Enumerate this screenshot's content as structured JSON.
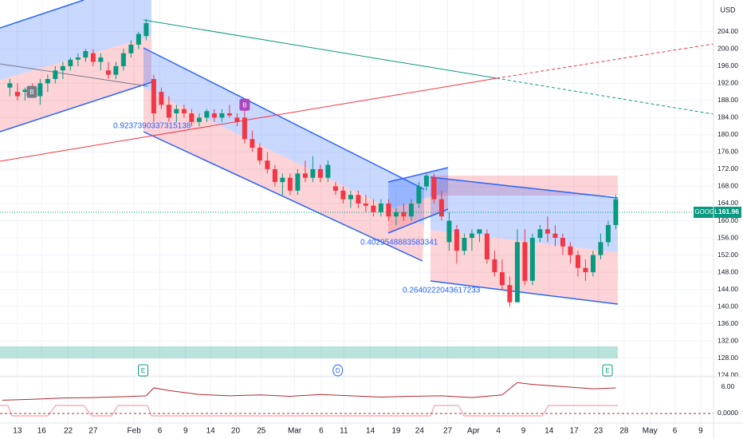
{
  "chart_data": [
    {
      "type": "candlestick",
      "currency": "USD",
      "x": [
        -1,
        0,
        1,
        2,
        3,
        4,
        5,
        6,
        7,
        8,
        9,
        10,
        11,
        12,
        13,
        14,
        15,
        16,
        17,
        18,
        19,
        20,
        21,
        22,
        23,
        24,
        25,
        26,
        27,
        28,
        29,
        30,
        31,
        32,
        33,
        34,
        35,
        36,
        37,
        38,
        39,
        40,
        41,
        42,
        43,
        44,
        45,
        46,
        47,
        48,
        49,
        50,
        51,
        52,
        53,
        54,
        55,
        56,
        57,
        58,
        59,
        60,
        61,
        62,
        63,
        64,
        65,
        66,
        67,
        68,
        69,
        70,
        71,
        72,
        73,
        74,
        75,
        76,
        77,
        78,
        79
      ],
      "ohlc": [
        [
          191,
          193,
          189,
          192
        ],
        [
          190,
          192,
          188,
          189
        ],
        [
          190,
          191,
          188,
          190.5
        ],
        [
          191,
          192,
          189,
          190
        ],
        [
          189,
          193,
          187,
          192
        ],
        [
          192,
          194,
          190,
          193
        ],
        [
          193,
          196,
          192,
          195
        ],
        [
          195,
          197,
          193,
          196
        ],
        [
          196,
          198,
          195,
          197.5
        ],
        [
          197.5,
          199,
          196,
          198
        ],
        [
          198,
          200,
          197,
          199.5
        ],
        [
          199,
          200,
          196,
          197
        ],
        [
          197,
          199,
          195,
          198
        ],
        [
          195,
          197,
          193,
          194
        ],
        [
          194,
          197,
          193,
          196
        ],
        [
          196,
          200,
          195,
          199
        ],
        [
          199,
          202,
          198,
          201
        ],
        [
          201,
          204,
          200,
          203.5
        ],
        [
          203,
          207,
          202,
          206
        ],
        [
          193,
          194,
          183,
          185
        ],
        [
          190,
          191,
          186,
          187
        ],
        [
          187,
          189,
          183,
          184
        ],
        [
          185,
          187,
          183,
          186
        ],
        [
          186,
          187,
          184,
          185
        ],
        [
          185,
          186,
          182,
          183
        ],
        [
          183,
          185,
          182,
          184
        ],
        [
          184,
          186,
          183,
          185.5
        ],
        [
          185,
          186,
          183,
          184
        ],
        [
          184,
          186,
          183,
          185
        ],
        [
          185,
          187,
          184,
          184.5
        ],
        [
          184,
          185,
          182,
          183
        ],
        [
          184,
          186,
          178,
          179
        ],
        [
          179,
          181,
          176,
          177
        ],
        [
          177,
          178,
          173,
          174
        ],
        [
          174,
          176,
          171,
          172
        ],
        [
          172,
          173,
          168,
          169
        ],
        [
          169,
          171,
          166,
          170
        ],
        [
          170,
          171,
          166,
          167
        ],
        [
          167,
          172,
          166,
          171
        ],
        [
          171,
          174,
          169,
          170
        ],
        [
          170,
          175,
          169,
          172
        ],
        [
          172,
          173,
          169,
          170
        ],
        [
          170,
          174,
          169,
          173
        ],
        [
          168,
          169,
          166,
          167
        ],
        [
          167,
          168,
          164,
          165
        ],
        [
          165,
          167,
          163,
          166
        ],
        [
          166,
          167,
          163,
          164
        ],
        [
          164,
          166,
          162,
          163.5
        ],
        [
          163.5,
          165,
          161,
          162
        ],
        [
          162,
          165,
          161,
          164
        ],
        [
          164,
          165,
          160,
          161
        ],
        [
          161,
          163,
          159,
          162
        ],
        [
          162,
          164,
          160,
          161
        ],
        [
          161,
          165,
          160,
          164
        ],
        [
          164,
          169,
          163,
          168
        ],
        [
          168,
          171,
          167,
          170.5
        ],
        [
          170,
          171,
          164,
          165
        ],
        [
          165,
          167,
          160,
          161
        ],
        [
          155,
          162,
          153,
          160
        ],
        [
          158,
          159,
          150,
          153
        ],
        [
          153,
          157,
          152,
          156
        ],
        [
          156,
          158,
          153,
          157
        ],
        [
          157,
          158,
          155,
          158
        ],
        [
          157,
          158,
          150,
          151
        ],
        [
          151,
          153,
          147,
          148
        ],
        [
          148,
          151,
          144,
          145
        ],
        [
          145,
          147,
          140,
          141
        ],
        [
          141,
          158,
          141,
          155
        ],
        [
          155,
          158,
          145,
          146
        ],
        [
          146,
          157,
          145,
          156
        ],
        [
          156,
          159,
          155,
          158
        ],
        [
          158,
          161,
          155,
          157
        ],
        [
          157,
          159,
          154,
          156
        ],
        [
          156,
          157,
          152,
          154
        ],
        [
          154,
          155,
          150,
          152
        ],
        [
          152,
          153,
          147,
          149
        ],
        [
          149,
          151,
          146,
          148
        ],
        [
          148,
          153,
          147,
          152
        ],
        [
          152,
          157,
          151,
          155
        ],
        [
          155,
          160,
          154,
          159
        ],
        [
          159,
          166,
          158,
          165
        ]
      ],
      "up_color": "#089981",
      "down_color": "#f23645",
      "xlim": [
        -2.3,
        91.9
      ],
      "ylim": [
        123.1,
        211.4
      ],
      "yticks": [
        {
          "value": 204,
          "label": "204.00"
        },
        {
          "value": 200,
          "label": "200.00"
        },
        {
          "value": 196,
          "label": "196.00"
        },
        {
          "value": 192,
          "label": "192.00"
        },
        {
          "value": 188,
          "label": "188.00"
        },
        {
          "value": 184,
          "label": "184.00"
        },
        {
          "value": 180,
          "label": "180.00"
        },
        {
          "value": 176,
          "label": "176.00"
        },
        {
          "value": 172,
          "label": "172.00"
        },
        {
          "value": 168,
          "label": "168.00"
        },
        {
          "value": 164,
          "label": "164.00"
        },
        {
          "value": 160,
          "label": "160.00"
        },
        {
          "value": 156,
          "label": "156.00"
        },
        {
          "value": 152,
          "label": "152.00"
        },
        {
          "value": 148,
          "label": "148.00"
        },
        {
          "value": 144,
          "label": "144.00"
        },
        {
          "value": 140,
          "label": "140.00"
        },
        {
          "value": 136,
          "label": "136.00"
        },
        {
          "value": 132,
          "label": "132.00"
        },
        {
          "value": 128,
          "label": "128.00"
        },
        {
          "value": 124,
          "label": "124.00"
        }
      ],
      "xticks": [
        {
          "value": 0,
          "label": "13"
        },
        {
          "value": 3.2,
          "label": "16"
        },
        {
          "value": 6.7,
          "label": "22"
        },
        {
          "value": 10,
          "label": "27"
        },
        {
          "value": 15.4,
          "label": "Feb"
        },
        {
          "value": 18.8,
          "label": "6"
        },
        {
          "value": 22.2,
          "label": "9"
        },
        {
          "value": 25.5,
          "label": "14"
        },
        {
          "value": 28.8,
          "label": "20"
        },
        {
          "value": 32.2,
          "label": "25"
        },
        {
          "value": 36.6,
          "label": "Mar"
        },
        {
          "value": 40.1,
          "label": "6"
        },
        {
          "value": 43.1,
          "label": "11"
        },
        {
          "value": 46.6,
          "label": "14"
        },
        {
          "value": 50,
          "label": "19"
        },
        {
          "value": 53.1,
          "label": "24"
        },
        {
          "value": 56.8,
          "label": "27"
        },
        {
          "value": 60.2,
          "label": "Apr"
        },
        {
          "value": 63.5,
          "label": "4"
        },
        {
          "value": 66.8,
          "label": "9"
        },
        {
          "value": 70.2,
          "label": "14"
        },
        {
          "value": 73.5,
          "label": "17"
        },
        {
          "value": 76.7,
          "label": "23"
        },
        {
          "value": 80.1,
          "label": "28"
        },
        {
          "value": 83.5,
          "label": "May"
        },
        {
          "value": 86.8,
          "label": "6"
        },
        {
          "value": 90.2,
          "label": "9"
        }
      ],
      "grid": true,
      "last_price": {
        "symbol": "GOOGL",
        "value": 161.96
      },
      "events": [
        {
          "label": "B",
          "x": 1.9,
          "y": 190
        },
        {
          "label": "B",
          "x": 30,
          "y": 187
        },
        {
          "label": "E",
          "x": 16.6
        },
        {
          "label": "D",
          "x": 42.3
        },
        {
          "label": "E",
          "x": 77.9
        }
      ],
      "annotations": [
        "0.9237390337315138",
        "0.4029548883583341",
        "0.2640222043617233"
      ]
    },
    {
      "type": "line",
      "x": [
        -2,
        2,
        6,
        10,
        14,
        17,
        18,
        20,
        24,
        28,
        32,
        36,
        40,
        44,
        48,
        52,
        56,
        60,
        64,
        66,
        68,
        72,
        76,
        79
      ],
      "values": [
        3.0,
        3.2,
        3.5,
        3.6,
        3.8,
        4.0,
        5.8,
        5.2,
        4.3,
        4.0,
        4.2,
        3.9,
        4.3,
        4.0,
        3.7,
        3.9,
        4.0,
        3.6,
        4.2,
        7.0,
        6.6,
        6.1,
        5.6,
        5.8
      ],
      "color": "#b22833",
      "ylim": [
        -3.1,
        8.7
      ],
      "yticks": [
        {
          "value": 6,
          "label": "6.00"
        },
        {
          "value": 0,
          "label": "0.0000"
        }
      ]
    }
  ]
}
